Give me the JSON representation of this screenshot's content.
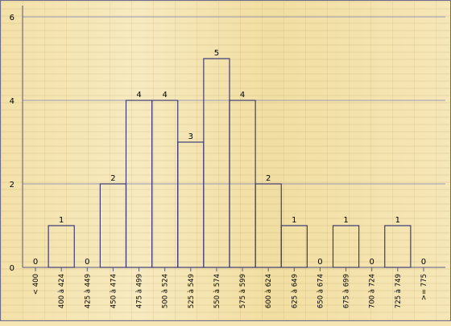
{
  "chart_data": {
    "type": "bar",
    "categories": [
      "< 400",
      "400 à 424",
      "425 à 449",
      "450 à 474",
      "475 à 499",
      "500 à 524",
      "525 à 549",
      "550 à 574",
      "575 à 599",
      "600 à 624",
      "625 à 649",
      "650 à 674",
      "675 à 699",
      "700 à 724",
      "725 à 749",
      ">= 775"
    ],
    "values": [
      0,
      1,
      0,
      2,
      4,
      4,
      3,
      5,
      4,
      2,
      1,
      0,
      1,
      0,
      1,
      0
    ],
    "title": "",
    "xlabel": "",
    "ylabel": "",
    "ylim": [
      0,
      6
    ],
    "yticks": [
      0,
      2,
      4,
      6
    ],
    "grid": true,
    "legend": "none",
    "colors": {
      "bar_stroke": "#3c3c78",
      "grid": "#9a9ab4",
      "axis": "#5a5a82",
      "text": "#000000"
    }
  }
}
